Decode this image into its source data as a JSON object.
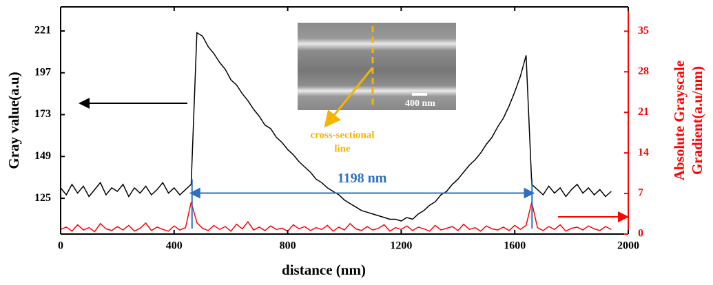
{
  "chart_data": {
    "type": "line",
    "xlabel": "distance (nm)",
    "ylabel": "Gray value(a.u)",
    "y2label": [
      "Absolute Grayscale",
      "Gradient(a.u/nm)"
    ],
    "xlim": [
      0,
      2000
    ],
    "xticks": [
      0,
      400,
      800,
      1200,
      1600,
      2000
    ],
    "ylim": [
      104.5,
      234.8
    ],
    "yticks": [
      125,
      149,
      173,
      197,
      221
    ],
    "y2lim": [
      0,
      39.2
    ],
    "y2ticks": [
      0,
      7,
      14,
      21,
      28,
      35
    ],
    "x": [
      0,
      20,
      40,
      60,
      80,
      100,
      120,
      140,
      160,
      180,
      200,
      220,
      240,
      260,
      280,
      300,
      320,
      340,
      360,
      380,
      400,
      420,
      440,
      460,
      480,
      500,
      520,
      540,
      560,
      580,
      600,
      620,
      640,
      660,
      680,
      700,
      720,
      740,
      760,
      780,
      800,
      820,
      840,
      860,
      880,
      900,
      920,
      940,
      960,
      980,
      1000,
      1020,
      1040,
      1060,
      1080,
      1100,
      1120,
      1140,
      1160,
      1180,
      1200,
      1220,
      1240,
      1260,
      1280,
      1300,
      1320,
      1340,
      1360,
      1380,
      1400,
      1420,
      1440,
      1460,
      1480,
      1500,
      1520,
      1540,
      1560,
      1580,
      1600,
      1620,
      1640,
      1660,
      1680,
      1700,
      1720,
      1740,
      1760,
      1780,
      1800,
      1820,
      1840,
      1860,
      1880,
      1900,
      1920,
      1940
    ],
    "series": [
      {
        "color": "#000000",
        "values": [
          131,
          127,
          133,
          128,
          132,
          126,
          130,
          134,
          127,
          131,
          129,
          133,
          126,
          131,
          128,
          132,
          127,
          130,
          134,
          128,
          131,
          127,
          130,
          133,
          220,
          218,
          212,
          208,
          203,
          199,
          193,
          190,
          185,
          181,
          176,
          172,
          167,
          165,
          160,
          157,
          153,
          150,
          146,
          143,
          140,
          136,
          134,
          131,
          129,
          127,
          124,
          122,
          120,
          118,
          117,
          116,
          115,
          114,
          113,
          113,
          112,
          114,
          113,
          116,
          118,
          121,
          123,
          127,
          129,
          133,
          136,
          140,
          144,
          147,
          151,
          156,
          160,
          166,
          171,
          178,
          186,
          195,
          207,
          133,
          130,
          127,
          132,
          128,
          131,
          126,
          130,
          133,
          128,
          131,
          127,
          130,
          126,
          129
        ]
      },
      {
        "color": "#ff0000",
        "axis": "y2",
        "values": [
          0.8,
          1.2,
          0.5,
          1.6,
          0.7,
          1.1,
          0.4,
          1.8,
          0.9,
          0.6,
          1.3,
          0.7,
          1.5,
          0.5,
          1.0,
          1.9,
          0.6,
          1.2,
          0.8,
          0.5,
          1.4,
          0.7,
          1.1,
          5.5,
          2.0,
          1.0,
          0.6,
          1.5,
          0.8,
          1.3,
          0.5,
          1.7,
          0.9,
          2.1,
          0.7,
          1.2,
          0.6,
          1.4,
          0.8,
          1.0,
          0.5,
          1.6,
          0.9,
          1.3,
          0.6,
          1.1,
          0.8,
          1.5,
          0.5,
          1.2,
          0.7,
          1.8,
          0.9,
          0.6,
          1.3,
          0.7,
          1.0,
          1.6,
          0.5,
          1.1,
          0.8,
          1.4,
          0.6,
          1.2,
          0.9,
          0.5,
          1.5,
          0.7,
          1.0,
          1.3,
          0.6,
          1.7,
          0.8,
          1.1,
          0.5,
          1.4,
          0.9,
          0.7,
          1.2,
          0.6,
          1.5,
          0.8,
          1.5,
          5.5,
          1.1,
          0.6,
          1.3,
          0.8,
          1.6,
          0.5,
          1.0,
          1.2,
          0.7,
          1.4,
          0.9,
          0.6,
          1.3,
          0.8
        ]
      }
    ],
    "dimension": {
      "label": "1198 nm",
      "x": [
        463,
        1661
      ],
      "y": 128
    },
    "annotations": {
      "inset_scale": "400 nm",
      "inset_line": [
        "cross-sectional",
        "line"
      ]
    }
  }
}
